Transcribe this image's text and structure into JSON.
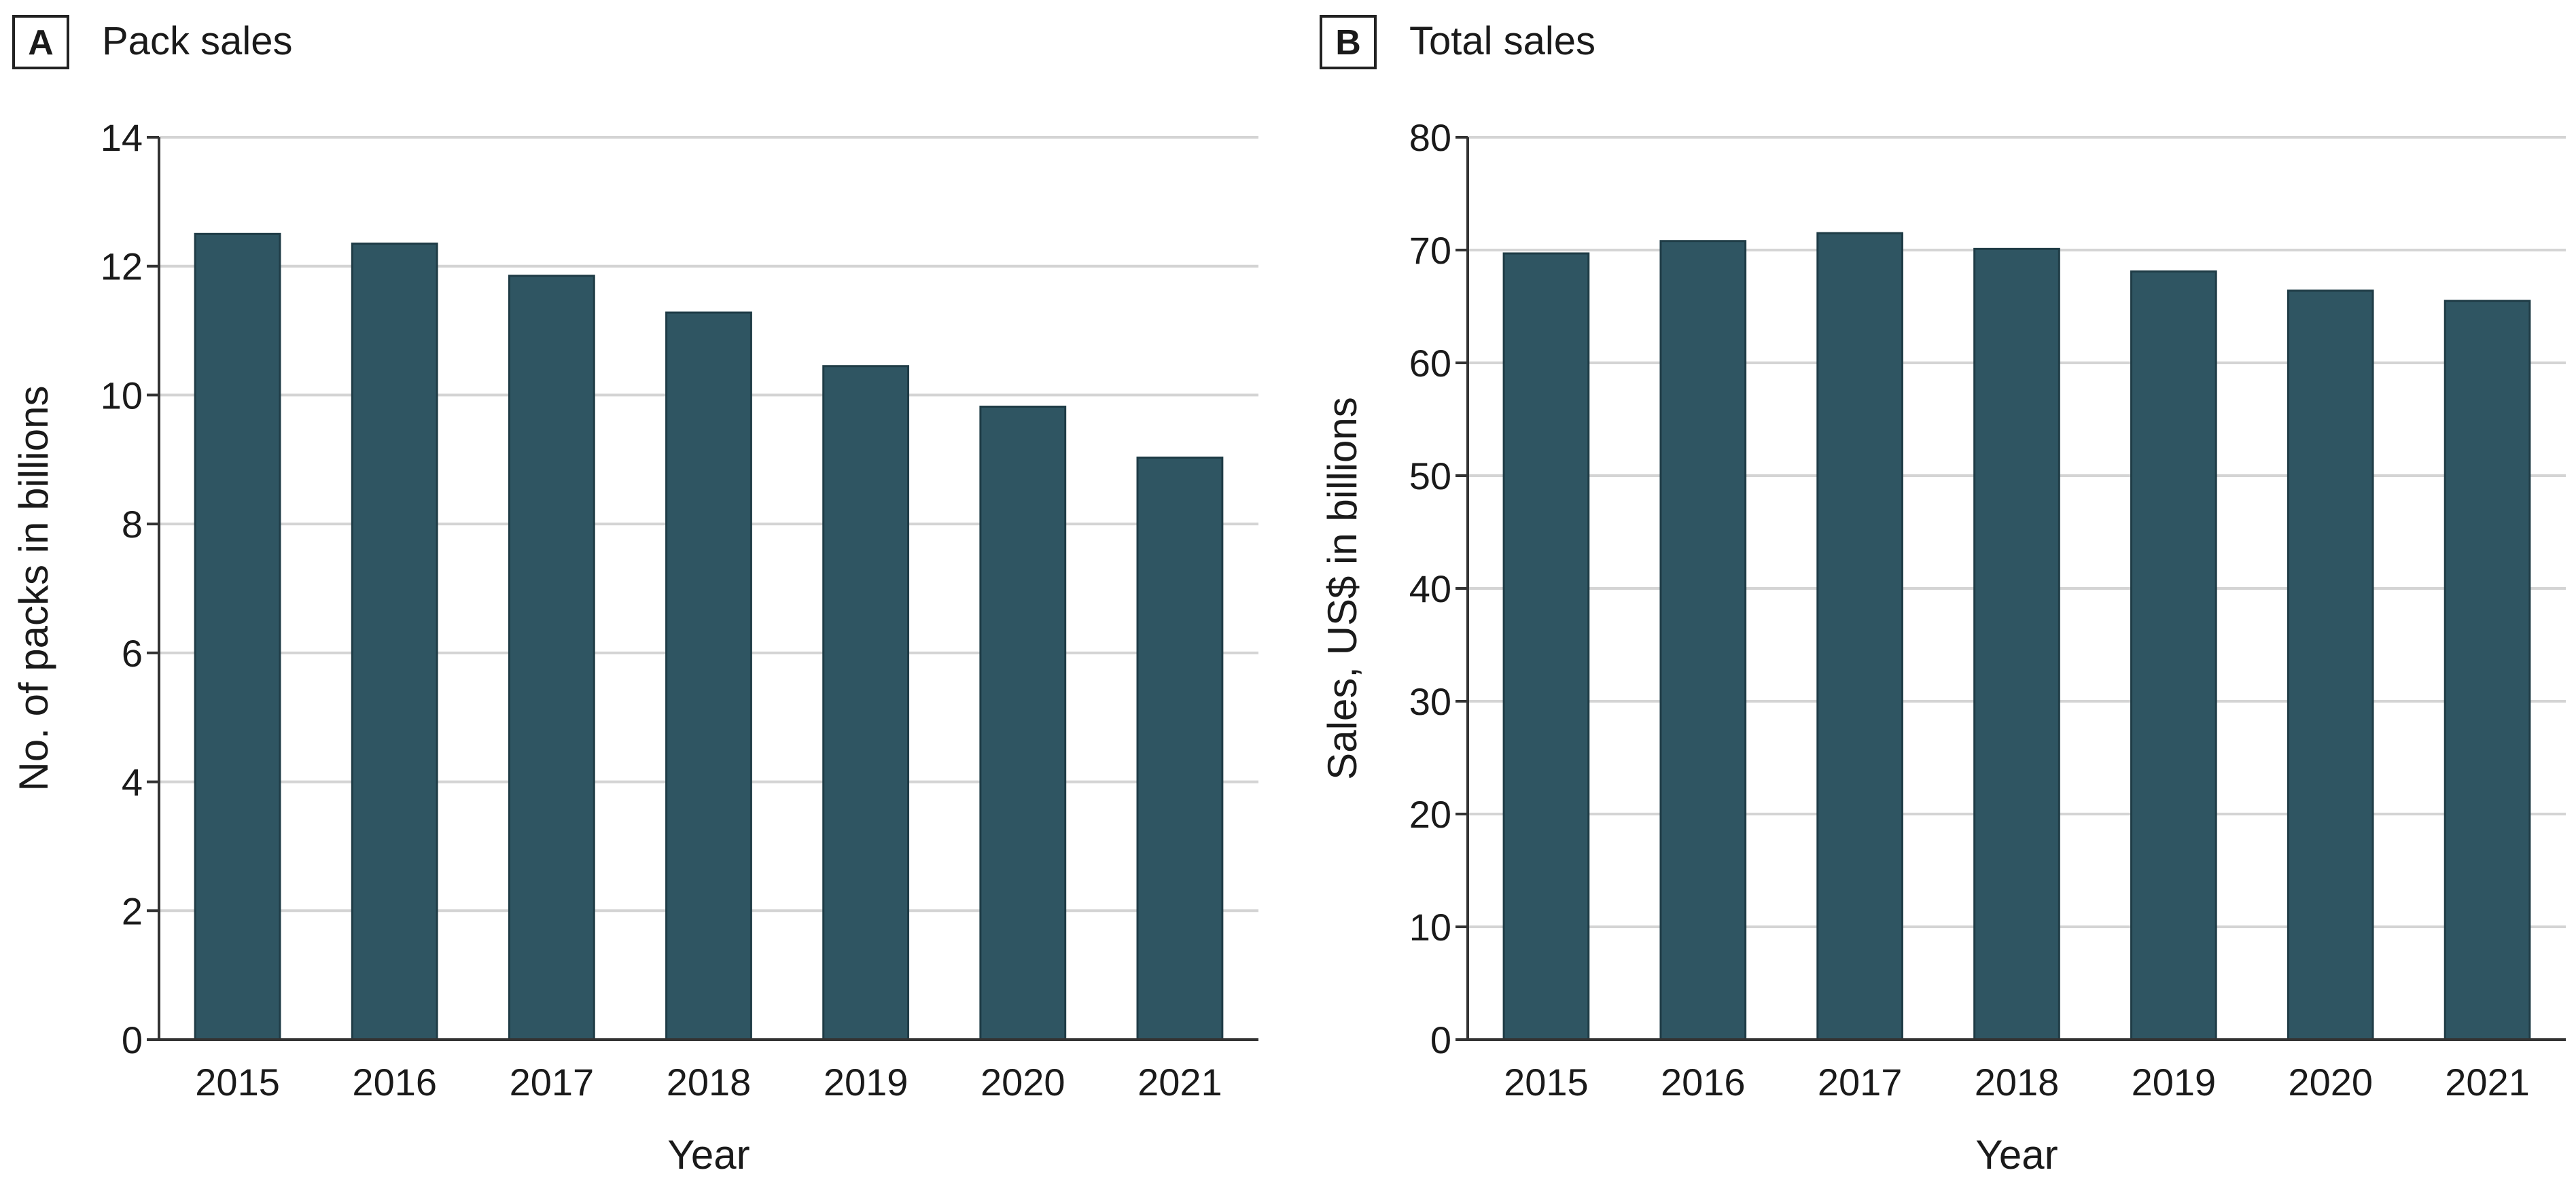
{
  "panels": [
    {
      "letter": "A",
      "title": "Pack sales"
    },
    {
      "letter": "B",
      "title": "Total sales"
    }
  ],
  "colors": {
    "bar": "#2f5562",
    "bar_stroke": "#1f3c46",
    "grid": "#d4d4d4",
    "axis": "#333333",
    "text": "#1a1a1a"
  },
  "chart_data": [
    {
      "type": "bar",
      "title": "Pack sales",
      "categories": [
        "2015",
        "2016",
        "2017",
        "2018",
        "2019",
        "2020",
        "2021"
      ],
      "values": [
        12.5,
        12.35,
        11.85,
        11.28,
        10.45,
        9.82,
        9.03
      ],
      "xlabel": "Year",
      "ylabel": "No. of packs in billions",
      "ylim": [
        0,
        14
      ],
      "yticks": [
        0,
        2,
        4,
        6,
        8,
        10,
        12,
        14
      ],
      "grid": true
    },
    {
      "type": "bar",
      "title": "Total sales",
      "categories": [
        "2015",
        "2016",
        "2017",
        "2018",
        "2019",
        "2020",
        "2021"
      ],
      "values": [
        69.7,
        70.8,
        71.5,
        70.1,
        68.1,
        66.4,
        65.5
      ],
      "xlabel": "Year",
      "ylabel": "Sales, US$ in billions",
      "ylim": [
        0,
        80
      ],
      "yticks": [
        0,
        10,
        20,
        30,
        40,
        50,
        60,
        70,
        80
      ],
      "grid": true
    }
  ]
}
